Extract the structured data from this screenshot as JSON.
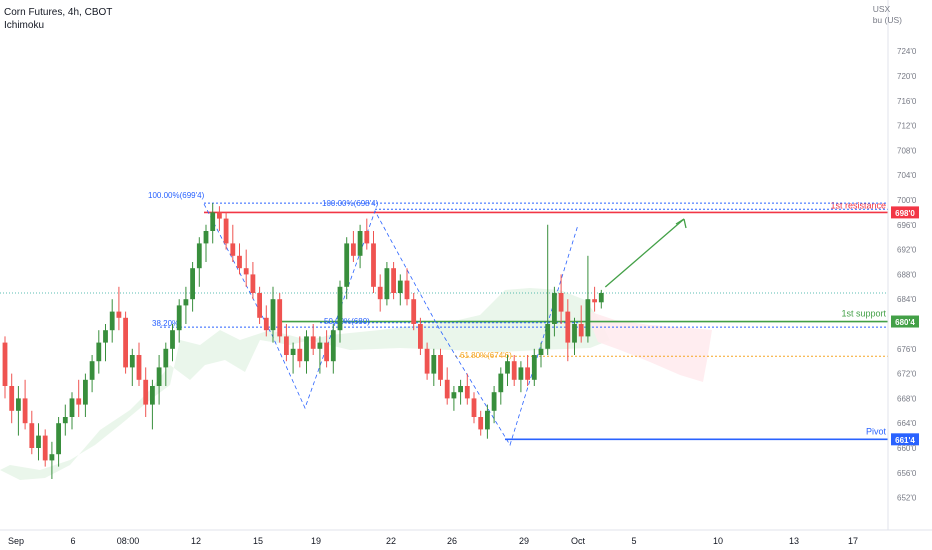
{
  "header": {
    "title": "Corn Futures, 4h, CBOT",
    "indicator": "Ichimoku"
  },
  "axis_unit": [
    "USX",
    "bu (US)"
  ],
  "chart_data": {
    "type": "candlestick",
    "title": "Corn Futures, 4h, CBOT",
    "xlabel": "",
    "ylabel": "",
    "x_tick_labels": [
      "Sep",
      "6",
      "08:00",
      "12",
      "15",
      "19",
      "22",
      "26",
      "29",
      "Oct",
      "5",
      "10",
      "13",
      "17"
    ],
    "y_tick_labels": [
      "724'0",
      "720'0",
      "716'0",
      "712'0",
      "708'0",
      "704'0",
      "700'0",
      "696'0",
      "692'0",
      "688'0",
      "684'0",
      "680'0",
      "676'0",
      "672'0",
      "668'0",
      "664'0",
      "660'0",
      "656'0",
      "652'0"
    ],
    "ylim": [
      648.5,
      730.5
    ],
    "colors": {
      "up": "#26a69a",
      "up_dark": "#388e3c",
      "down": "#ef5350",
      "cloud_green": "#e8f5e9",
      "cloud_red": "#ffebee"
    },
    "levels": [
      {
        "name": "1st resistance",
        "price": 698.0,
        "label": "698'0",
        "color": "#f23645"
      },
      {
        "name": "1st support",
        "price": 680.4,
        "label": "680'4",
        "color": "#43a047"
      },
      {
        "name": "Pivot",
        "price": 661.4,
        "label": "661'4",
        "color": "#2962ff"
      }
    ],
    "fib_labels": [
      "100.00%(699'4)",
      "100.00%(698'4)",
      "38.20%",
      "50.00%(680)",
      "61.80%(674'6)"
    ],
    "last_price_dotted": 685.0,
    "candles": [
      [
        677.0,
        678.0,
        668.0,
        670.0
      ],
      [
        670.0,
        672.0,
        664.0,
        666.0
      ],
      [
        666.0,
        670.0,
        662.0,
        668.0
      ],
      [
        668.0,
        671.0,
        663.0,
        664.0
      ],
      [
        664.0,
        666.0,
        659.0,
        660.0
      ],
      [
        660.0,
        664.0,
        658.0,
        662.0
      ],
      [
        662.0,
        663.0,
        657.0,
        658.0
      ],
      [
        658.0,
        661.0,
        655.0,
        659.0
      ],
      [
        659.0,
        665.0,
        657.0,
        664.0
      ],
      [
        664.0,
        667.0,
        662.0,
        665.0
      ],
      [
        665.0,
        669.0,
        663.0,
        668.0
      ],
      [
        668.0,
        671.0,
        665.0,
        667.0
      ],
      [
        667.0,
        672.0,
        665.0,
        671.0
      ],
      [
        671.0,
        675.0,
        669.0,
        674.0
      ],
      [
        674.0,
        679.0,
        672.0,
        677.0
      ],
      [
        677.0,
        680.0,
        674.0,
        679.0
      ],
      [
        679.0,
        684.0,
        677.0,
        682.0
      ],
      [
        682.0,
        686.0,
        679.0,
        681.0
      ],
      [
        681.0,
        682.0,
        672.0,
        673.0
      ],
      [
        673.0,
        676.0,
        670.0,
        675.0
      ],
      [
        675.0,
        677.0,
        670.0,
        671.0
      ],
      [
        671.0,
        673.0,
        665.0,
        667.0
      ],
      [
        667.0,
        671.0,
        663.0,
        670.0
      ],
      [
        670.0,
        675.0,
        667.0,
        673.0
      ],
      [
        673.0,
        677.0,
        670.0,
        676.0
      ],
      [
        676.0,
        680.0,
        674.0,
        679.0
      ],
      [
        679.0,
        684.0,
        677.0,
        683.0
      ],
      [
        683.0,
        686.0,
        680.0,
        684.0
      ],
      [
        684.0,
        690.0,
        682.0,
        689.0
      ],
      [
        689.0,
        694.0,
        686.0,
        693.0
      ],
      [
        693.0,
        696.0,
        690.0,
        695.0
      ],
      [
        695.0,
        699.5,
        693.0,
        698.0
      ],
      [
        698.0,
        699.0,
        695.0,
        697.0
      ],
      [
        697.0,
        698.0,
        692.0,
        693.0
      ],
      [
        693.0,
        696.0,
        690.0,
        691.0
      ],
      [
        691.0,
        693.0,
        688.0,
        689.0
      ],
      [
        689.0,
        692.0,
        686.0,
        688.0
      ],
      [
        688.0,
        690.0,
        684.0,
        685.0
      ],
      [
        685.0,
        686.0,
        680.0,
        681.0
      ],
      [
        681.0,
        683.0,
        678.0,
        679.0
      ],
      [
        679.0,
        686.0,
        677.0,
        684.0
      ],
      [
        684.0,
        685.0,
        677.0,
        678.0
      ],
      [
        678.0,
        680.0,
        674.0,
        675.0
      ],
      [
        675.0,
        677.0,
        672.0,
        676.0
      ],
      [
        676.0,
        678.0,
        673.0,
        674.0
      ],
      [
        674.0,
        679.0,
        672.0,
        678.0
      ],
      [
        678.0,
        680.0,
        675.0,
        676.0
      ],
      [
        676.0,
        678.0,
        672.0,
        677.0
      ],
      [
        677.0,
        679.0,
        673.0,
        674.0
      ],
      [
        674.0,
        680.0,
        672.0,
        679.0
      ],
      [
        679.0,
        687.0,
        677.0,
        686.0
      ],
      [
        686.0,
        694.0,
        684.0,
        693.0
      ],
      [
        693.0,
        695.0,
        690.0,
        691.0
      ],
      [
        691.0,
        696.0,
        689.0,
        695.0
      ],
      [
        695.0,
        697.0,
        692.0,
        693.0
      ],
      [
        693.0,
        695.0,
        685.0,
        686.0
      ],
      [
        686.0,
        688.0,
        682.0,
        684.0
      ],
      [
        684.0,
        690.0,
        683.0,
        689.0
      ],
      [
        689.0,
        690.0,
        684.0,
        685.0
      ],
      [
        685.0,
        688.0,
        683.0,
        687.0
      ],
      [
        687.0,
        689.0,
        683.0,
        684.0
      ],
      [
        684.0,
        685.0,
        679.0,
        680.0
      ],
      [
        680.0,
        681.0,
        675.0,
        676.0
      ],
      [
        676.0,
        677.0,
        671.0,
        672.0
      ],
      [
        672.0,
        676.0,
        670.0,
        675.0
      ],
      [
        675.0,
        676.0,
        670.0,
        671.0
      ],
      [
        671.0,
        673.0,
        667.0,
        668.0
      ],
      [
        668.0,
        670.0,
        666.0,
        669.0
      ],
      [
        669.0,
        671.0,
        667.0,
        670.0
      ],
      [
        670.0,
        672.0,
        667.0,
        668.0
      ],
      [
        668.0,
        669.0,
        664.0,
        665.0
      ],
      [
        665.0,
        666.0,
        662.0,
        663.0
      ],
      [
        663.0,
        667.0,
        661.5,
        666.0
      ],
      [
        666.0,
        670.0,
        664.0,
        669.0
      ],
      [
        669.0,
        673.0,
        667.0,
        672.0
      ],
      [
        672.0,
        675.0,
        670.0,
        674.0
      ],
      [
        674.0,
        675.0,
        670.0,
        671.0
      ],
      [
        671.0,
        674.0,
        669.0,
        673.0
      ],
      [
        673.0,
        675.0,
        670.0,
        671.0
      ],
      [
        671.0,
        676.0,
        670.0,
        675.0
      ],
      [
        675.0,
        677.0,
        673.0,
        676.0
      ],
      [
        676.0,
        696.0,
        675.0,
        680.0
      ],
      [
        680.0,
        686.0,
        678.0,
        685.0
      ],
      [
        685.0,
        688.0,
        680.0,
        682.0
      ],
      [
        682.0,
        684.0,
        674.0,
        677.0
      ],
      [
        677.0,
        681.0,
        675.0,
        680.0
      ],
      [
        680.0,
        683.0,
        677.0,
        678.0
      ],
      [
        678.0,
        691.0,
        677.0,
        684.0
      ],
      [
        684.0,
        686.0,
        682.0,
        683.5
      ],
      [
        683.5,
        685.5,
        682.5,
        685.0
      ]
    ],
    "annotations": [
      {
        "text": "1st resistance",
        "color": "#f23645"
      },
      {
        "text": "1st support",
        "color": "#43a047"
      },
      {
        "text": "Pivot",
        "color": "#2962ff"
      }
    ]
  }
}
